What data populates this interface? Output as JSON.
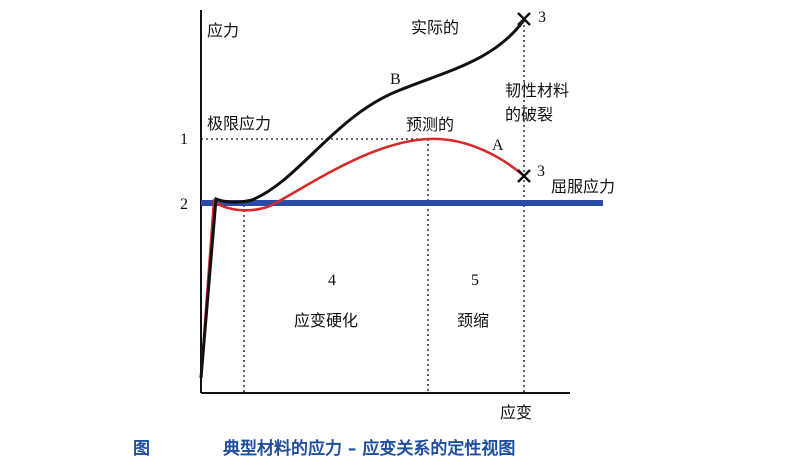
{
  "chart_data": {
    "type": "line",
    "ylabel": "应力",
    "xlabel": "应变",
    "y_markers": [
      {
        "label": "1",
        "name": "极限应力"
      },
      {
        "label": "2",
        "name": "屈服应力"
      }
    ],
    "series": [
      {
        "name": "实际的",
        "tag": "B",
        "color": "#111111"
      },
      {
        "name": "预测的",
        "tag": "A",
        "color": "#d42a2a"
      }
    ],
    "fracture_note": [
      "韧性材料",
      "的破裂"
    ],
    "fracture_marker": "3",
    "regions": [
      {
        "number": "4",
        "name": "应变硬化"
      },
      {
        "number": "5",
        "name": "颈缩"
      }
    ],
    "yield_line_color": "#2b4aa8"
  },
  "caption": {
    "figure_label": "图",
    "text": "典型材料的应力 – 应变关系的定性视图"
  }
}
